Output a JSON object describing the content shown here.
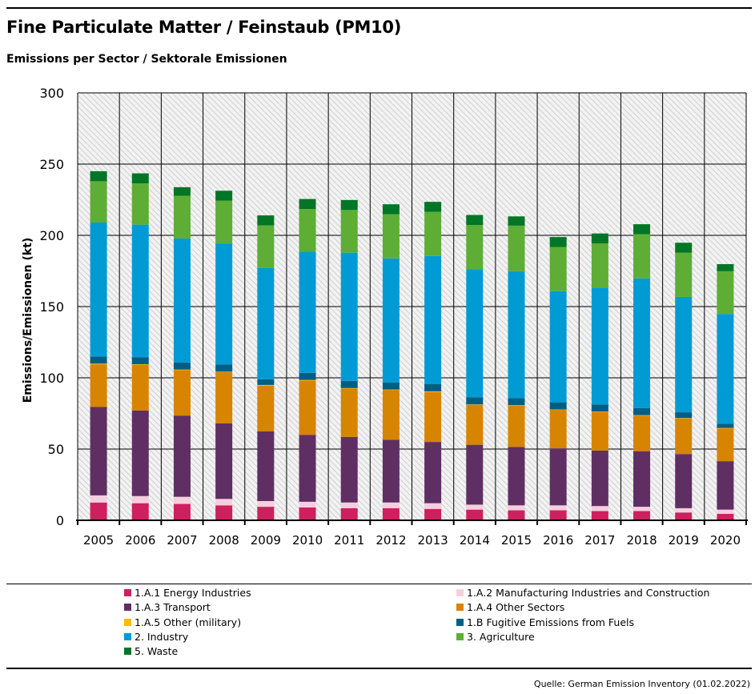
{
  "header": {
    "title": "Fine Particulate Matter / Feinstaub (PM10)",
    "subtitle": "Emissions per Sector / Sektorale Emissionen"
  },
  "footer": {
    "source": "Quelle: German Emission Inventory (01.02.2022)"
  },
  "chart_data": {
    "type": "bar",
    "stacked": true,
    "title": "Fine Particulate Matter / Feinstaub (PM10)",
    "subtitle": "Emissions per Sector / Sektorale Emissionen",
    "xlabel": "",
    "ylabel": "Emissions/Emissionen (kt)",
    "ylim": [
      0,
      300
    ],
    "yticks": [
      0,
      50,
      100,
      150,
      200,
      250,
      300
    ],
    "grid": true,
    "legend_position": "bottom",
    "categories": [
      "2005",
      "2006",
      "2007",
      "2008",
      "2009",
      "2010",
      "2011",
      "2012",
      "2013",
      "2014",
      "2015",
      "2016",
      "2017",
      "2018",
      "2019",
      "2020"
    ],
    "series": [
      {
        "name": "1.A.1 Energy Industries",
        "color": "#ce1f5e",
        "values": [
          12.5,
          12,
          11.5,
          10.5,
          9.5,
          9,
          8.5,
          8.5,
          8,
          7.5,
          7,
          7,
          6.5,
          6.5,
          5.5,
          4.5
        ]
      },
      {
        "name": "1.A.2 Manufacturing Industries and Construction",
        "color": "#f6cfdf",
        "values": [
          5,
          5,
          5,
          4.5,
          4,
          4,
          4,
          4,
          4,
          3.5,
          3.5,
          3.5,
          3.5,
          3,
          3,
          3
        ]
      },
      {
        "name": "1.A.3 Transport",
        "color": "#5f2f64",
        "values": [
          62,
          60,
          57,
          53,
          49,
          47,
          46,
          44,
          43,
          42,
          41,
          40,
          39,
          39,
          38,
          34
        ]
      },
      {
        "name": "1.A.4 Other Sectors",
        "color": "#d78400",
        "values": [
          30,
          32,
          32,
          36,
          32,
          38,
          34,
          35,
          35,
          28,
          29,
          27,
          27,
          25,
          25,
          23
        ]
      },
      {
        "name": "1.A.5 Other (military)",
        "color": "#fbbb00",
        "values": [
          0.5,
          0.5,
          0.3,
          0.3,
          0.5,
          0.5,
          0.3,
          0.3,
          0.5,
          0.3,
          0.3,
          0.3,
          0.3,
          0.3,
          0.3,
          0.3
        ]
      },
      {
        "name": "1.B Fugitive Emissions from Fuels",
        "color": "#005e85",
        "values": [
          5,
          5,
          5,
          5,
          4,
          5,
          5,
          5,
          5,
          5,
          5,
          5,
          5,
          5,
          4,
          3
        ]
      },
      {
        "name": "2. Industry",
        "color": "#009bd5",
        "values": [
          94,
          93,
          87,
          85,
          78,
          85,
          90,
          87,
          90,
          90,
          89,
          78,
          82,
          91,
          81,
          77
        ]
      },
      {
        "name": "3. Agriculture",
        "color": "#5ead35",
        "values": [
          29,
          29,
          30,
          30,
          30,
          30,
          30,
          31,
          31,
          31,
          32,
          31,
          31,
          31,
          31,
          30
        ]
      },
      {
        "name": "5. Waste",
        "color": "#007626",
        "values": [
          7,
          7,
          6,
          7,
          7,
          7,
          7,
          7,
          7,
          7,
          6.5,
          7,
          7,
          7,
          7,
          5
        ]
      }
    ],
    "legend_layout": [
      [
        "1.A.1 Energy Industries",
        "1.A.2 Manufacturing Industries and Construction"
      ],
      [
        "1.A.3 Transport",
        "1.A.4 Other Sectors"
      ],
      [
        "1.A.5 Other (military)",
        "1.B Fugitive Emissions from Fuels"
      ],
      [
        "2. Industry",
        "3. Agriculture"
      ],
      [
        "5. Waste"
      ]
    ]
  }
}
